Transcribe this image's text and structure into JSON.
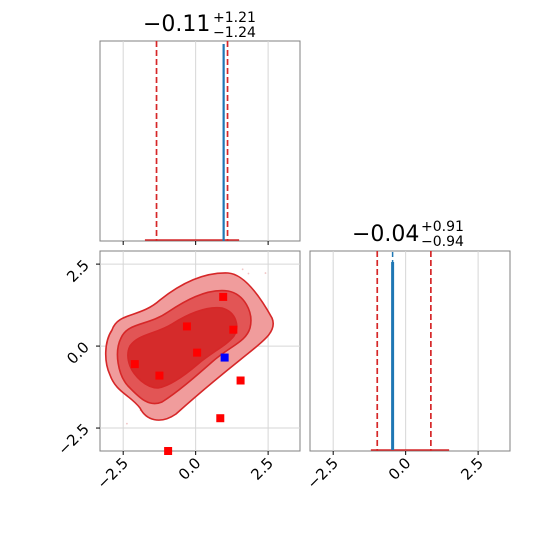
{
  "chart_data": [
    {
      "type": "histogram",
      "panel": "top-left",
      "title": {
        "value": "−0.11",
        "plus": "+1.21",
        "minus": "−1.24"
      },
      "xlim": [
        -3.3,
        3.6
      ],
      "ylim": [
        0,
        1
      ],
      "xticks": [
        -2.5,
        0.0,
        2.5
      ],
      "grid": true,
      "quantile_lines": [
        -1.35,
        1.1
      ],
      "quantile_color": "#d62728",
      "truth_line": {
        "x": 1.0,
        "color": "#1f77b4"
      },
      "histogram": {
        "color": "#d62728",
        "x_range": [
          -1.75,
          1.5
        ]
      }
    },
    {
      "type": "histogram",
      "panel": "bottom-right",
      "title": {
        "value": "−0.04",
        "plus": "+0.91",
        "minus": "−0.94"
      },
      "xlim": [
        -3.3,
        3.6
      ],
      "ylim": [
        0,
        1
      ],
      "xticks": [
        -2.5,
        0.0,
        2.5
      ],
      "tick_labels": [
        "−2.5",
        "0.0",
        "2.5"
      ],
      "grid": true,
      "quantile_lines": [
        -0.98,
        0.87
      ],
      "quantile_color": "#d62728",
      "truth_line": {
        "x": -0.45,
        "color": "#1f77b4"
      },
      "histogram": {
        "color": "#d62728",
        "x_range": [
          -1.2,
          1.5
        ]
      }
    },
    {
      "type": "scatter",
      "panel": "bottom-left",
      "xlim": [
        -3.3,
        3.6
      ],
      "ylim": [
        -3.2,
        2.9
      ],
      "xticks": [
        -2.5,
        0.0,
        2.5
      ],
      "yticks": [
        -2.5,
        0.0,
        2.5
      ],
      "tick_labels": [
        "−2.5",
        "0.0",
        "2.5"
      ],
      "grid": true,
      "contour_color": "#d62728",
      "red_points": [
        [
          -2.1,
          -0.55
        ],
        [
          -1.25,
          -0.9
        ],
        [
          -0.3,
          0.6
        ],
        [
          0.05,
          -0.2
        ],
        [
          0.95,
          1.5
        ],
        [
          1.3,
          0.5
        ],
        [
          1.55,
          -1.05
        ],
        [
          0.85,
          -2.2
        ],
        [
          -0.95,
          -3.2
        ]
      ],
      "blue_points": [
        [
          1.0,
          -0.35
        ]
      ]
    }
  ]
}
